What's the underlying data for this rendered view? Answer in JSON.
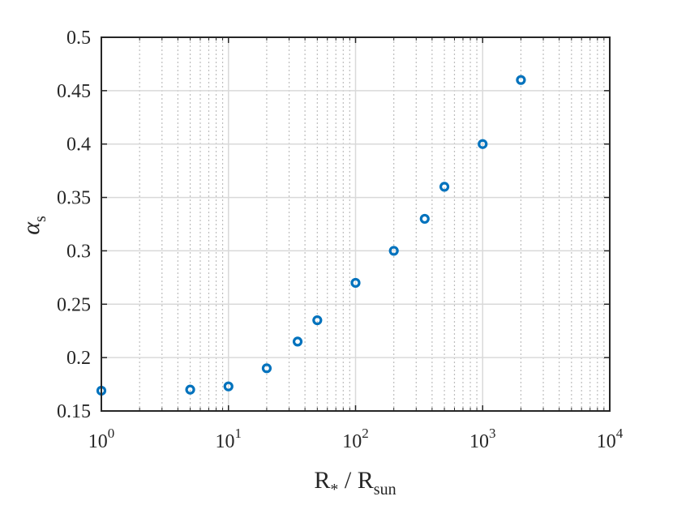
{
  "chart_data": {
    "type": "scatter",
    "title": "",
    "xlabel": {
      "main": "R",
      "sub": "*",
      "sep": " / R",
      "sub2": "sun"
    },
    "ylabel": {
      "main": "α",
      "sub": "s"
    },
    "xscale": "log",
    "xlim": [
      1,
      10000
    ],
    "ylim": [
      0.15,
      0.5
    ],
    "grid": true,
    "xticks": [
      {
        "value": 1,
        "base": "10",
        "exp": "0"
      },
      {
        "value": 10,
        "base": "10",
        "exp": "1"
      },
      {
        "value": 100,
        "base": "10",
        "exp": "2"
      },
      {
        "value": 1000,
        "base": "10",
        "exp": "3"
      },
      {
        "value": 10000,
        "base": "10",
        "exp": "4"
      }
    ],
    "yticks": [
      {
        "value": 0.15,
        "label": "0.15"
      },
      {
        "value": 0.2,
        "label": "0.2"
      },
      {
        "value": 0.25,
        "label": "0.25"
      },
      {
        "value": 0.3,
        "label": "0.3"
      },
      {
        "value": 0.35,
        "label": "0.35"
      },
      {
        "value": 0.4,
        "label": "0.4"
      },
      {
        "value": 0.45,
        "label": "0.45"
      },
      {
        "value": 0.5,
        "label": "0.5"
      }
    ],
    "series": [
      {
        "color": "#0072BD",
        "marker": "circle-open",
        "points": [
          {
            "x": 1,
            "y": 0.169
          },
          {
            "x": 5,
            "y": 0.17
          },
          {
            "x": 10,
            "y": 0.173
          },
          {
            "x": 20,
            "y": 0.19
          },
          {
            "x": 35,
            "y": 0.215
          },
          {
            "x": 50,
            "y": 0.235
          },
          {
            "x": 100,
            "y": 0.27
          },
          {
            "x": 200,
            "y": 0.3
          },
          {
            "x": 350,
            "y": 0.33
          },
          {
            "x": 500,
            "y": 0.36
          },
          {
            "x": 1000,
            "y": 0.4
          },
          {
            "x": 2000,
            "y": 0.46
          }
        ]
      }
    ]
  }
}
